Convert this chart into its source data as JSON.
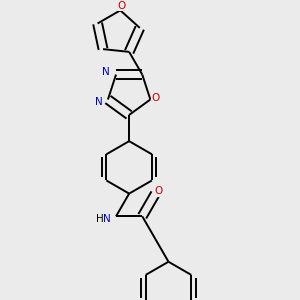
{
  "bg_color": "#ebebeb",
  "bond_color": "#000000",
  "n_color": "#0000cc",
  "o_color": "#cc0000",
  "line_width": 1.4,
  "dbo": 0.018,
  "figsize": [
    3.0,
    3.0
  ],
  "dpi": 100,
  "xlim": [
    0.0,
    1.0
  ],
  "ylim": [
    0.0,
    1.0
  ]
}
